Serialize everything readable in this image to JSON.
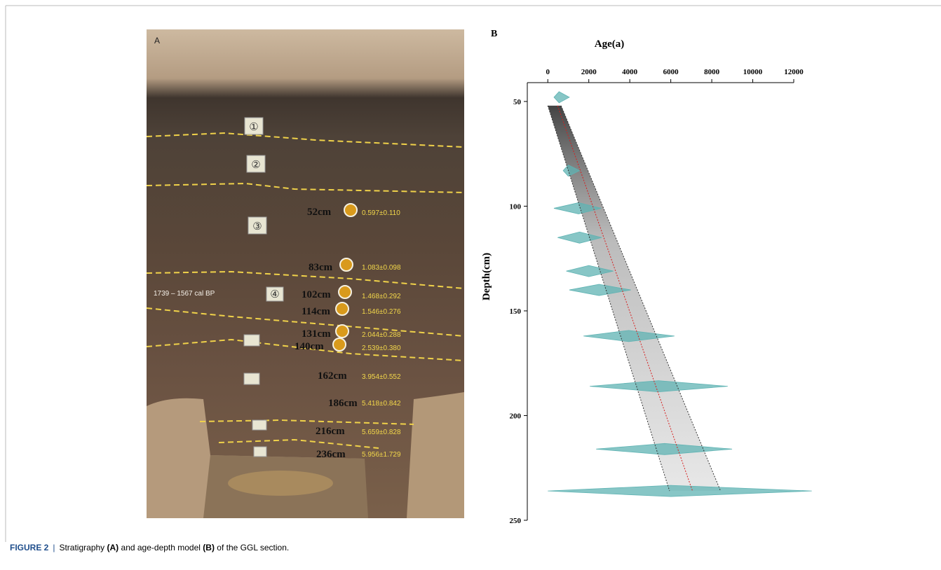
{
  "panel_a": {
    "label": "A",
    "samples": [
      {
        "depth": "52cm",
        "age": "0.597±0.110"
      },
      {
        "depth": "83cm",
        "age": "1.083±0.098"
      },
      {
        "depth": "102cm",
        "age": "1.468±0.292"
      },
      {
        "depth": "114cm",
        "age": "1.546±0.276"
      },
      {
        "depth": "131cm",
        "age": "2.044±0.288"
      },
      {
        "depth": "140cm",
        "age": "2.539±0.380"
      },
      {
        "depth": "162cm",
        "age": "3.954±0.552"
      },
      {
        "depth": "186cm",
        "age": "5.418±0.842"
      },
      {
        "depth": "216cm",
        "age": "5.659±0.828"
      },
      {
        "depth": "236cm",
        "age": "5.956±1.729"
      }
    ],
    "layers": [
      "①",
      "②",
      "③",
      "④"
    ],
    "date_note": "1739 – 1567 cal  BP"
  },
  "chart_data": {
    "type": "age-depth",
    "panel_label": "B",
    "x_label": "Age(a)",
    "y_label": "Depth(cm)",
    "xlim": [
      -1000,
      12000
    ],
    "xticks": [
      0,
      2000,
      4000,
      6000,
      8000,
      10000,
      12000
    ],
    "ylim": [
      41,
      250
    ],
    "yticks": [
      50,
      100,
      150,
      200,
      250
    ],
    "dates": {
      "color": "#5fb3b3",
      "depth": [
        48,
        83,
        101,
        115,
        131,
        140,
        162,
        186,
        216,
        236
      ],
      "age": [
        550,
        1000,
        1500,
        1550,
        2000,
        2500,
        3950,
        5400,
        5700,
        6000
      ],
      "age_min": [
        300,
        750,
        300,
        480,
        900,
        1050,
        1740,
        2050,
        2360,
        0
      ],
      "age_max": [
        1050,
        1550,
        2600,
        2630,
        3200,
        4050,
        6180,
        8780,
        8990,
        12880
      ]
    },
    "model": {
      "depth": [
        52,
        236
      ],
      "median": [
        480,
        7060
      ],
      "lower": [
        0,
        5940
      ],
      "upper": [
        650,
        8430
      ],
      "median_color": "#d62020",
      "bound_color": "#333333"
    }
  },
  "caption": {
    "label": "FIGURE 2",
    "separator": "|",
    "parts": [
      "Stratigraphy ",
      "(A)",
      " and age-depth model ",
      "(B)",
      " of the GGL section."
    ]
  }
}
